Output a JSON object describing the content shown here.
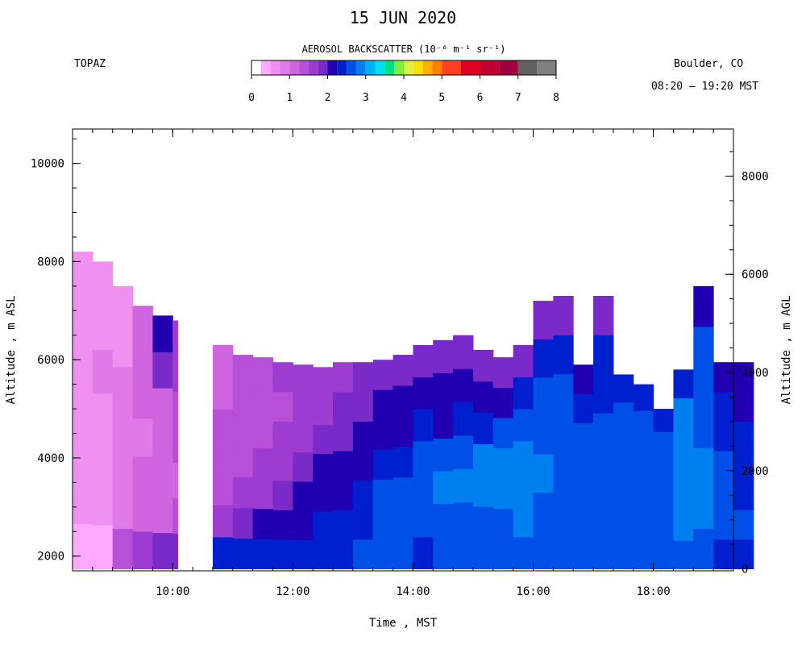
{
  "header": {
    "date": "15 JUN 2020",
    "site": "TOPAZ",
    "location": "Boulder, CO",
    "time_range": "08:20 – 19:20 MST",
    "colorbar_title": "AEROSOL BACKSCATTER (10⁻⁶ m⁻¹ sr⁻¹)"
  },
  "colorbar": {
    "ticks": [
      "0",
      "1",
      "2",
      "3",
      "4",
      "5",
      "6",
      "7",
      "8"
    ],
    "colors": [
      "#ffffff",
      "#ffa8ff",
      "#f090f0",
      "#e07ae8",
      "#cf66e0",
      "#b84fd8",
      "#9c3cd0",
      "#7a2ac8",
      "#2000b0",
      "#0020d0",
      "#0050e8",
      "#0080f0",
      "#00b0f8",
      "#00e0f0",
      "#00e080",
      "#80f040",
      "#e0f040",
      "#ffe000",
      "#ffb000",
      "#ff8000",
      "#ff4020",
      "#e00020",
      "#c00030",
      "#a00040",
      "#606060",
      "#808080",
      "#c0c0c0"
    ],
    "breaks": [
      0,
      0.25,
      0.5,
      0.75,
      1,
      1.25,
      1.5,
      1.75,
      2,
      2.25,
      2.5,
      2.75,
      3,
      3.25,
      3.5,
      3.75,
      4,
      4.25,
      4.5,
      4.75,
      5,
      5.5,
      6,
      6.5,
      7,
      7.5,
      8
    ]
  },
  "axes": {
    "xlabel": "Time , MST",
    "ylabel_left": "Altitude , m ASL",
    "ylabel_right": "Altitude , m AGL"
  },
  "chart_data": {
    "type": "heatmap",
    "title": "15 JUN 2020",
    "xlabel": "Time , MST",
    "ylabel": "Altitude , m ASL",
    "ylabel_right": "Altitude , m AGL",
    "x_range": [
      "08:20",
      "19:20"
    ],
    "x_ticks": [
      "10:00",
      "12:00",
      "14:00",
      "16:00",
      "18:00"
    ],
    "y_range_asl": [
      1700,
      10700
    ],
    "y_ticks_asl": [
      2000,
      4000,
      6000,
      8000,
      10000
    ],
    "y_ticks_agl": [
      0,
      2000,
      4000,
      6000,
      8000
    ],
    "ground_level_asl": 1740,
    "value_range": [
      0,
      8
    ],
    "value_units": "10⁻⁶ m⁻¹ sr⁻¹",
    "data_gap": [
      "10:05",
      "10:35"
    ],
    "profile_times": [
      "08:20",
      "08:40",
      "09:00",
      "09:20",
      "09:40",
      "10:00",
      "10:40",
      "11:00",
      "11:20",
      "11:40",
      "12:00",
      "12:20",
      "12:40",
      "13:00",
      "13:20",
      "13:40",
      "14:00",
      "14:20",
      "14:40",
      "15:00",
      "15:20",
      "15:40",
      "16:00",
      "16:20",
      "16:40",
      "17:00",
      "17:20",
      "17:40",
      "18:00",
      "18:20",
      "18:40",
      "19:00",
      "19:20"
    ],
    "aerosol_top_m_asl": [
      8200,
      8000,
      7500,
      7100,
      6900,
      6800,
      6300,
      6100,
      6050,
      5950,
      5900,
      5850,
      5950,
      5950,
      6000,
      6100,
      6300,
      6400,
      6500,
      6200,
      6050,
      6300,
      7200,
      7300,
      5900,
      7300,
      5700,
      5500,
      5000,
      5800,
      7500,
      5950,
      5950
    ],
    "profile_values": [
      [
        0.25,
        0.5,
        0.5,
        0.5,
        0.5,
        0.5,
        0.5
      ],
      [
        0.25,
        0.5,
        0.5,
        0.5,
        0.75,
        0.5,
        0.5
      ],
      [
        1.25,
        0.75,
        0.75,
        0.75,
        0.75,
        0.5,
        0.5
      ],
      [
        1.5,
        1,
        1,
        0.75,
        1,
        1,
        1
      ],
      [
        1.75,
        1,
        1,
        1,
        1,
        1.75,
        2
      ],
      [
        1.75,
        1.25,
        1,
        1.25,
        1.25,
        1.5,
        1.5
      ],
      [
        2.25,
        1.5,
        1.25,
        1.25,
        1.25,
        1,
        1
      ],
      [
        2.25,
        1.75,
        1.5,
        1.25,
        1.25,
        1.25,
        1.25
      ],
      [
        2.25,
        2,
        1.5,
        1.5,
        1.25,
        1.25,
        1.25
      ],
      [
        2.25,
        2,
        1.75,
        1.5,
        1.5,
        1.25,
        1.5
      ],
      [
        2.25,
        2,
        2,
        1.75,
        1.5,
        1.5,
        1.5
      ],
      [
        2.25,
        2.25,
        2,
        2,
        1.75,
        1.5,
        1.5
      ],
      [
        2.25,
        2.25,
        2,
        2,
        1.75,
        1.75,
        1.5
      ],
      [
        2.5,
        2.25,
        2.25,
        2,
        2,
        1.75,
        1.75
      ],
      [
        2.5,
        2.5,
        2.5,
        2.25,
        2,
        2,
        1.75
      ],
      [
        2.5,
        2.5,
        2.5,
        2.25,
        2,
        2,
        1.75
      ],
      [
        2.25,
        2.5,
        2.5,
        2.5,
        2.25,
        2,
        1.75
      ],
      [
        2.5,
        2.5,
        2.75,
        2.5,
        2,
        2,
        1.75
      ],
      [
        2.5,
        2.5,
        2.75,
        2.5,
        2.25,
        2,
        1.75
      ],
      [
        2.5,
        2.5,
        2.75,
        2.75,
        2.25,
        2,
        1.75
      ],
      [
        2.5,
        2.5,
        2.75,
        2.75,
        2.5,
        2,
        1.75
      ],
      [
        2.5,
        2.75,
        2.75,
        2.75,
        2.5,
        2.25,
        1.75
      ],
      [
        2.5,
        2.5,
        2.75,
        2.5,
        2.5,
        2.25,
        1.75
      ],
      [
        2.5,
        2.5,
        2.5,
        2.5,
        2.5,
        2.25,
        1.75
      ],
      [
        2.5,
        2.5,
        2.5,
        2.5,
        2.5,
        2.25,
        2
      ],
      [
        2.5,
        2.5,
        2.5,
        2.5,
        2.25,
        2.25,
        1.75
      ],
      [
        2.5,
        2.5,
        2.5,
        2.5,
        2.5,
        2.5,
        2.25
      ],
      [
        2.5,
        2.5,
        2.5,
        2.5,
        2.5,
        2.5,
        2.25
      ],
      [
        2.5,
        2.5,
        2.5,
        2.5,
        2.5,
        2.5,
        2.25
      ],
      [
        2.5,
        2.75,
        2.75,
        2.75,
        2.75,
        2.75,
        2.25
      ],
      [
        2.5,
        2.75,
        2.75,
        2.5,
        2.5,
        2.5,
        2
      ],
      [
        2.25,
        2.5,
        2.5,
        2.5,
        2.25,
        2.25,
        2
      ],
      [
        2.25,
        2.5,
        2.25,
        2.25,
        2.25,
        2,
        2
      ]
    ]
  }
}
